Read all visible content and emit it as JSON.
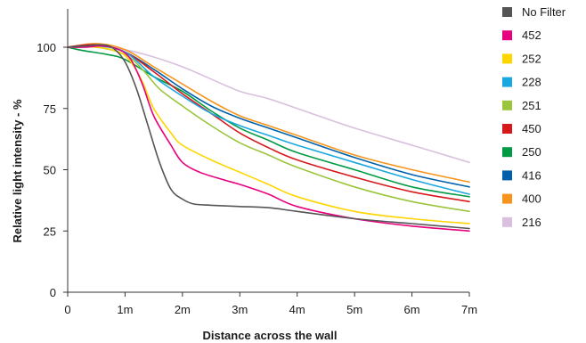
{
  "chart_data": {
    "type": "line",
    "title": "",
    "xlabel": "Distance across the wall",
    "ylabel": "Relative light intensity - %",
    "xlim": [
      0,
      7
    ],
    "ylim": [
      0,
      110
    ],
    "x_ticks": [
      {
        "value": 0,
        "label": "0"
      },
      {
        "value": 1,
        "label": "1m"
      },
      {
        "value": 2,
        "label": "2m"
      },
      {
        "value": 3,
        "label": "3m"
      },
      {
        "value": 4,
        "label": "4m"
      },
      {
        "value": 5,
        "label": "5m"
      },
      {
        "value": 6,
        "label": "6m"
      },
      {
        "value": 7,
        "label": "7m"
      }
    ],
    "y_ticks": [
      {
        "value": 0,
        "label": "0"
      },
      {
        "value": 25,
        "label": "25"
      },
      {
        "value": 50,
        "label": "50"
      },
      {
        "value": 75,
        "label": "75"
      },
      {
        "value": 100,
        "label": "100"
      }
    ],
    "grid": false,
    "legend_position": "right",
    "series": [
      {
        "name": "No Filter",
        "color": "#555555",
        "points": [
          [
            0,
            100
          ],
          [
            0.3,
            100.5
          ],
          [
            0.6,
            101
          ],
          [
            0.8,
            99.5
          ],
          [
            1.0,
            94
          ],
          [
            1.2,
            83
          ],
          [
            1.4,
            68
          ],
          [
            1.6,
            53
          ],
          [
            1.8,
            42
          ],
          [
            2.0,
            38
          ],
          [
            2.2,
            36
          ],
          [
            2.5,
            35.5
          ],
          [
            3.0,
            35
          ],
          [
            3.5,
            34.5
          ],
          [
            4.0,
            33
          ],
          [
            5.0,
            30
          ],
          [
            6.0,
            28
          ],
          [
            7.0,
            26
          ]
        ]
      },
      {
        "name": "452",
        "color": "#e6007e",
        "points": [
          [
            0,
            100
          ],
          [
            0.3,
            100
          ],
          [
            0.6,
            100.5
          ],
          [
            0.9,
            99
          ],
          [
            1.1,
            95
          ],
          [
            1.3,
            85
          ],
          [
            1.5,
            72
          ],
          [
            1.8,
            60
          ],
          [
            2.0,
            53
          ],
          [
            2.3,
            49
          ],
          [
            2.7,
            46
          ],
          [
            3.0,
            44
          ],
          [
            3.5,
            40
          ],
          [
            4.0,
            35
          ],
          [
            5.0,
            30
          ],
          [
            6.0,
            27
          ],
          [
            7.0,
            25
          ]
        ]
      },
      {
        "name": "252",
        "color": "#ffd500",
        "points": [
          [
            0,
            100
          ],
          [
            0.5,
            100
          ],
          [
            0.9,
            98
          ],
          [
            1.1,
            94
          ],
          [
            1.3,
            86
          ],
          [
            1.5,
            75
          ],
          [
            1.8,
            65
          ],
          [
            2.0,
            60
          ],
          [
            2.5,
            54
          ],
          [
            3.0,
            49
          ],
          [
            3.5,
            44
          ],
          [
            4.0,
            39
          ],
          [
            5.0,
            33
          ],
          [
            6.0,
            30
          ],
          [
            7.0,
            28
          ]
        ]
      },
      {
        "name": "228",
        "color": "#1aa7e0",
        "points": [
          [
            0,
            100
          ],
          [
            0.5,
            100.5
          ],
          [
            1.0,
            98
          ],
          [
            1.5,
            88
          ],
          [
            2.0,
            80
          ],
          [
            2.5,
            73
          ],
          [
            3.0,
            68
          ],
          [
            3.5,
            64
          ],
          [
            4.0,
            60
          ],
          [
            5.0,
            53
          ],
          [
            6.0,
            46
          ],
          [
            7.0,
            40
          ]
        ]
      },
      {
        "name": "251",
        "color": "#9bc53d",
        "points": [
          [
            0,
            100
          ],
          [
            0.5,
            100
          ],
          [
            1.0,
            97
          ],
          [
            1.3,
            91
          ],
          [
            1.6,
            83
          ],
          [
            2.0,
            76
          ],
          [
            2.5,
            68
          ],
          [
            3.0,
            61
          ],
          [
            3.5,
            56
          ],
          [
            4.0,
            51
          ],
          [
            5.0,
            43
          ],
          [
            6.0,
            37
          ],
          [
            7.0,
            33
          ]
        ]
      },
      {
        "name": "450",
        "color": "#d7191c",
        "points": [
          [
            0,
            100
          ],
          [
            0.5,
            101
          ],
          [
            1.0,
            98
          ],
          [
            1.5,
            90
          ],
          [
            2.0,
            81
          ],
          [
            2.5,
            73
          ],
          [
            3.0,
            65
          ],
          [
            3.5,
            59
          ],
          [
            4.0,
            54
          ],
          [
            5.0,
            47
          ],
          [
            6.0,
            41
          ],
          [
            7.0,
            37
          ]
        ]
      },
      {
        "name": "250",
        "color": "#009a44",
        "points": [
          [
            0,
            100
          ],
          [
            0.3,
            98.5
          ],
          [
            0.7,
            97
          ],
          [
            1.0,
            95
          ],
          [
            1.5,
            88
          ],
          [
            2.0,
            82
          ],
          [
            2.5,
            74
          ],
          [
            3.0,
            67
          ],
          [
            3.5,
            62
          ],
          [
            4.0,
            57
          ],
          [
            5.0,
            50
          ],
          [
            6.0,
            43
          ],
          [
            7.0,
            39
          ]
        ]
      },
      {
        "name": "416",
        "color": "#0060a9",
        "points": [
          [
            0,
            100
          ],
          [
            0.5,
            101
          ],
          [
            1.0,
            98
          ],
          [
            1.5,
            91
          ],
          [
            2.0,
            83
          ],
          [
            2.5,
            76
          ],
          [
            3.0,
            71
          ],
          [
            3.5,
            67
          ],
          [
            4.0,
            63
          ],
          [
            5.0,
            55
          ],
          [
            6.0,
            48
          ],
          [
            7.0,
            43
          ]
        ]
      },
      {
        "name": "400",
        "color": "#f7941d",
        "points": [
          [
            0,
            100
          ],
          [
            0.5,
            101.5
          ],
          [
            1.0,
            99
          ],
          [
            1.5,
            92
          ],
          [
            2.0,
            85
          ],
          [
            2.5,
            78
          ],
          [
            3.0,
            72
          ],
          [
            3.5,
            68
          ],
          [
            4.0,
            64
          ],
          [
            5.0,
            56
          ],
          [
            6.0,
            50
          ],
          [
            7.0,
            45
          ]
        ]
      },
      {
        "name": "216",
        "color": "#d8c0de",
        "points": [
          [
            0,
            100
          ],
          [
            0.5,
            100.5
          ],
          [
            1.0,
            99
          ],
          [
            1.5,
            96
          ],
          [
            2.0,
            92
          ],
          [
            2.5,
            87
          ],
          [
            3.0,
            82
          ],
          [
            3.5,
            79
          ],
          [
            4.0,
            75
          ],
          [
            5.0,
            67
          ],
          [
            6.0,
            60
          ],
          [
            7.0,
            53
          ]
        ]
      }
    ]
  }
}
